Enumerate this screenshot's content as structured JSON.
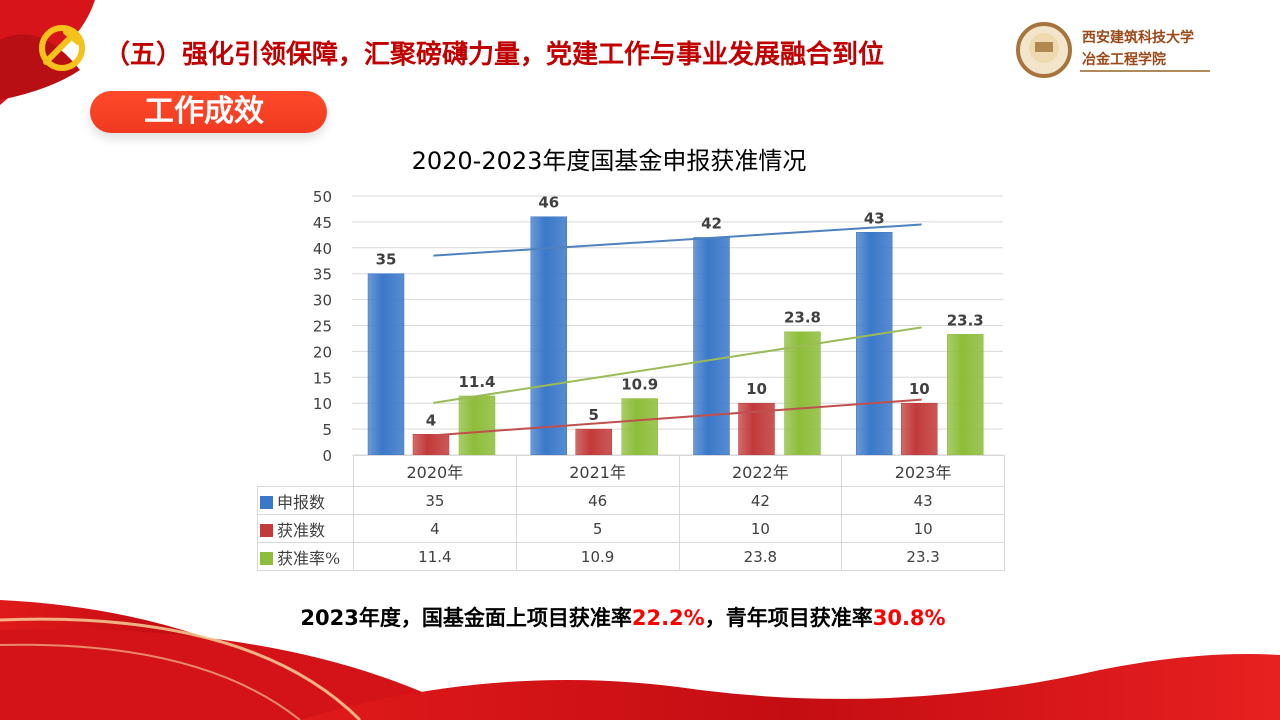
{
  "header": {
    "title": "（五）强化引领保障，汇聚磅礴力量，党建工作与事业发展融合到位",
    "section_label": "工作成效",
    "logo_text": [
      "西安建筑科技大学",
      "冶金工程学院"
    ]
  },
  "colors": {
    "title": "#c00000",
    "pill": "#f23c22",
    "blue": "#3a78c9",
    "red": "#c23a3a",
    "green": "#8dbd3a",
    "highlight": "#ff0000"
  },
  "chart_data": {
    "type": "bar",
    "title": "2020-2023年度国基金申报获准情况",
    "categories": [
      "2020年",
      "2021年",
      "2022年",
      "2023年"
    ],
    "series": [
      {
        "name": "申报数",
        "values": [
          35,
          46,
          42,
          43
        ],
        "color": "#3a78c9",
        "trend_color": "#4f81bd"
      },
      {
        "name": "获准数",
        "values": [
          4,
          5,
          10,
          10
        ],
        "color": "#c23a3a",
        "trend_color": "#c0504d"
      },
      {
        "name": "获准率%",
        "values": [
          11.4,
          10.9,
          23.8,
          23.3
        ],
        "color": "#8dbd3a",
        "trend_color": "#9bbb59"
      }
    ],
    "trendlines": "linear",
    "ylim": [
      0,
      50
    ],
    "yticks": [
      0,
      5,
      10,
      15,
      20,
      25,
      30,
      35,
      40,
      45,
      50
    ],
    "grid": true,
    "data_table": true
  },
  "summary": {
    "part1": "2023年度，国基金面上项目获准率",
    "value1": "22.2%",
    "part2": "，青年项目获准率",
    "value2": "30.8%"
  }
}
